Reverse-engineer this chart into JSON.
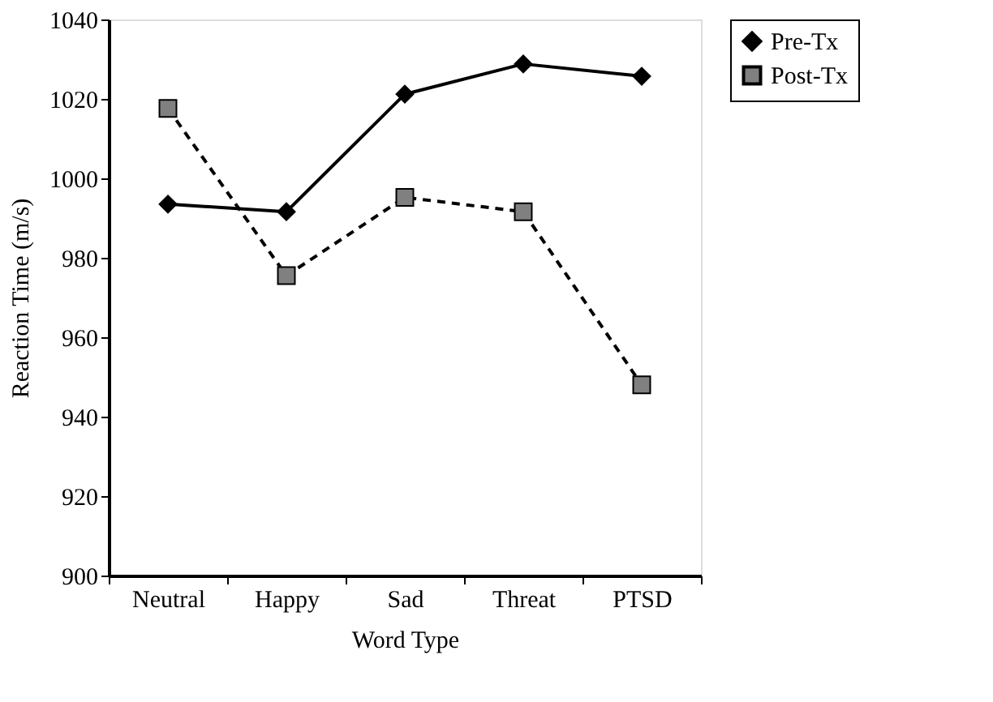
{
  "chart_data": {
    "type": "line",
    "xlabel": "Word Type",
    "ylabel": "Reaction Time (m/s)",
    "categories": [
      "Neutral",
      "Happy",
      "Sad",
      "Threat",
      "PTSD"
    ],
    "series": [
      {
        "name": "Pre-Tx",
        "color": "#000000",
        "marker": "diamond",
        "line_style": "solid",
        "values": [
          993.5,
          991.6,
          1021.2,
          1028.8,
          1025.7
        ]
      },
      {
        "name": "Post-Tx",
        "color": "#808080",
        "marker": "square",
        "line_style": "dashed",
        "values": [
          1017.6,
          975.5,
          995.2,
          991.6,
          948.0
        ]
      }
    ],
    "ylim": [
      900,
      1040
    ],
    "yticks": [
      900,
      920,
      940,
      960,
      980,
      1000,
      1020,
      1040
    ],
    "grid": false,
    "legend": "right"
  }
}
